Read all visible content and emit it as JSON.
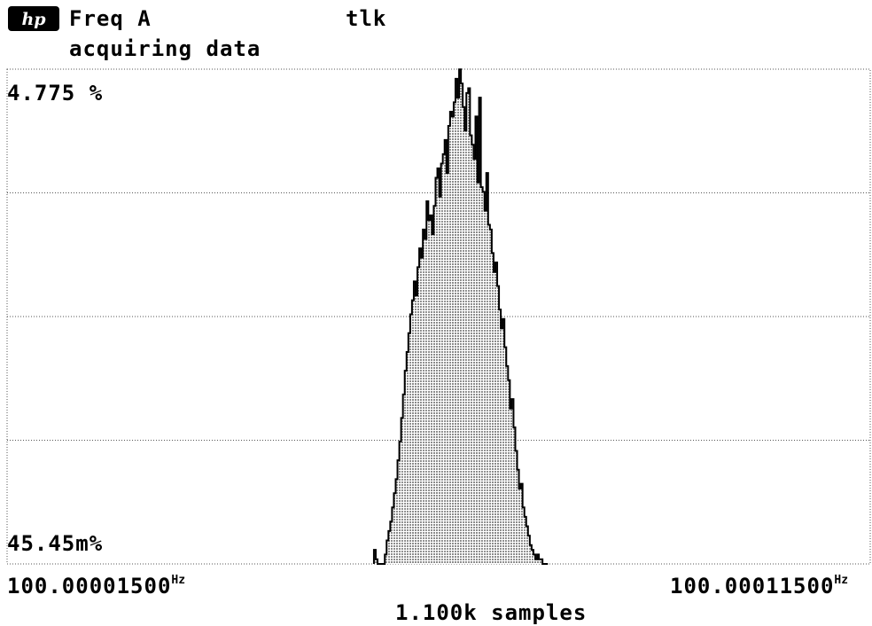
{
  "header": {
    "title": "Freq A",
    "status": "acquiring data",
    "tlk": "tlk",
    "logo_text": "hp"
  },
  "colors": {
    "background": "#ffffff",
    "foreground": "#000000",
    "grid": "#555555",
    "fill": "#b5b5b5"
  },
  "chart_data": {
    "type": "bar",
    "title": "Freq A",
    "xlabel": "1.100k samples",
    "ylabel": "",
    "y_top_label": "4.775 %",
    "y_bottom_label": "45.45m%",
    "x_left_value": "100.00001500",
    "x_right_value": "100.00011500",
    "x_unit": "Hz",
    "xlim": [
      100.000015,
      100.000115
    ],
    "ylim": [
      0.04545,
      4.775
    ],
    "grid": true,
    "bin_width": 2.1e-07,
    "x": [
      100.0000575,
      100.00005771,
      100.00005792,
      100.00005813,
      100.00005834,
      100.00005855,
      100.00005876,
      100.00005897,
      100.00005918,
      100.00005939,
      100.0000596,
      100.00005981,
      100.00006002,
      100.00006023,
      100.00006044,
      100.00006065,
      100.00006086,
      100.00006107,
      100.00006128,
      100.00006149,
      100.0000617,
      100.00006191,
      100.00006212,
      100.00006233,
      100.00006254,
      100.00006275,
      100.00006296,
      100.00006317,
      100.00006338,
      100.00006359,
      100.0000638,
      100.00006401,
      100.00006422,
      100.00006443,
      100.00006464,
      100.00006485,
      100.00006506,
      100.00006527,
      100.00006548,
      100.00006569,
      100.0000659,
      100.00006611,
      100.00006632,
      100.00006653,
      100.00006674,
      100.00006695,
      100.00006716,
      100.00006737,
      100.00006758,
      100.00006779,
      100.000068,
      100.00006821,
      100.00006842,
      100.00006863,
      100.00006884,
      100.00006905,
      100.00006926,
      100.00006947,
      100.00006968,
      100.00006989,
      100.0000701,
      100.00007031,
      100.00007052,
      100.00007073,
      100.00007094,
      100.00007115,
      100.00007136,
      100.00007157,
      100.00007178,
      100.00007199,
      100.0000722,
      100.00007241,
      100.00007262,
      100.00007283,
      100.00007304,
      100.00007325,
      100.00007346,
      100.00007367,
      100.00007388,
      100.00007409,
      100.0000743,
      100.00007451,
      100.00007472,
      100.00007493,
      100.00007514,
      100.00007535,
      100.00007556,
      100.00007577,
      100.00007598,
      100.00007619,
      100.0000764,
      100.00007661,
      100.00007682,
      100.00007703,
      100.00007724,
      100.00007745
    ],
    "values": [
      0.136,
      0.045,
      0,
      0,
      0,
      0,
      0.091,
      0.227,
      0.318,
      0.409,
      0.545,
      0.682,
      0.818,
      1.0,
      1.182,
      1.409,
      1.636,
      1.864,
      2.045,
      2.227,
      2.409,
      2.545,
      2.727,
      2.591,
      2.864,
      3.045,
      2.955,
      3.227,
      3.136,
      3.5,
      3.318,
      3.364,
      3.182,
      3.455,
      3.727,
      3.818,
      3.545,
      3.864,
      3.955,
      4.091,
      3.773,
      4.227,
      4.364,
      4.318,
      4.455,
      4.682,
      4.5,
      4.773,
      4.636,
      4.409,
      4.182,
      4.545,
      4.591,
      4.136,
      4.045,
      3.909,
      4.318,
      3.682,
      4.5,
      3.636,
      3.591,
      3.409,
      3.773,
      3.273,
      3.227,
      3.0,
      2.818,
      2.909,
      2.682,
      2.455,
      2.273,
      2.364,
      2.091,
      1.909,
      1.773,
      1.5,
      1.591,
      1.318,
      1.091,
      0.909,
      0.727,
      0.773,
      0.545,
      0.455,
      0.364,
      0.273,
      0.182,
      0.136,
      0.091,
      0.045,
      0.091,
      0.045,
      0.045,
      0,
      0,
      0
    ]
  }
}
